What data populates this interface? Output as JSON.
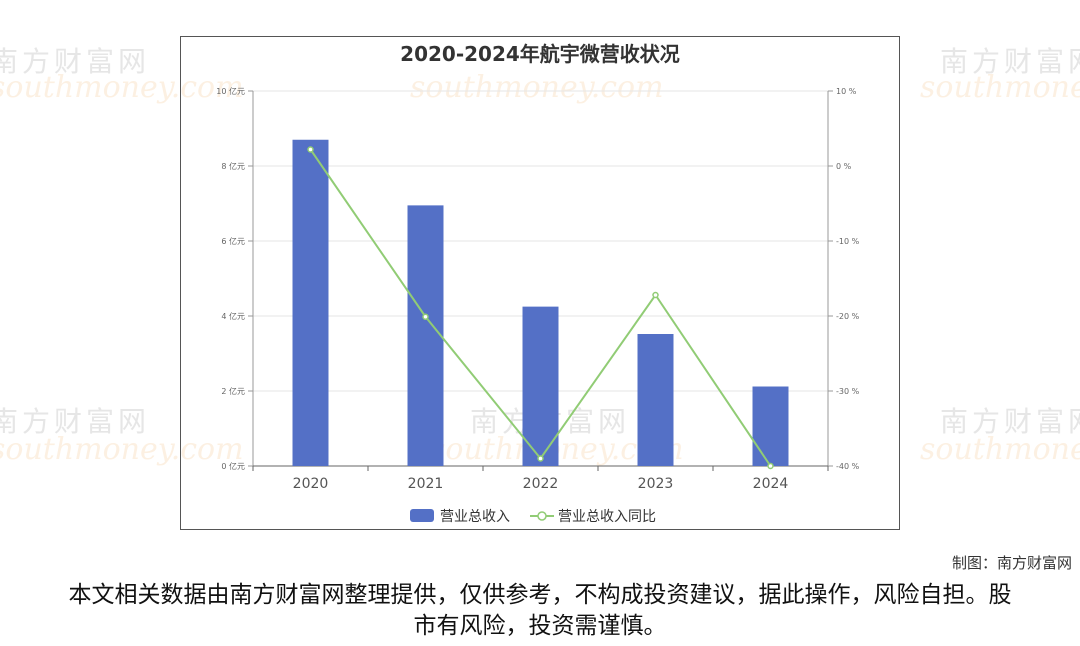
{
  "chart_data": {
    "type": "bar+line",
    "title": "2020-2024年航宇微营收状况",
    "categories": [
      "2020",
      "2021",
      "2022",
      "2023",
      "2024"
    ],
    "series": [
      {
        "name": "营业总收入",
        "type": "bar",
        "axis": "left",
        "unit": "亿元",
        "color": "#5470c6",
        "values": [
          8.7,
          6.95,
          4.25,
          3.52,
          2.12
        ]
      },
      {
        "name": "营业总收入同比",
        "type": "line",
        "axis": "right",
        "unit": "%",
        "color": "#91cc75",
        "values": [
          2.2,
          -20.1,
          -39,
          -17.2,
          -40
        ]
      }
    ],
    "left_axis": {
      "ylim": [
        0,
        10
      ],
      "ticks": [
        0,
        2,
        4,
        6,
        8,
        10
      ],
      "tick_labels": [
        "0 亿元",
        "2 亿元",
        "4 亿元",
        "6 亿元",
        "8 亿元",
        "10 亿元"
      ]
    },
    "right_axis": {
      "ylim": [
        -40,
        10
      ],
      "ticks": [
        -40,
        -30,
        -20,
        -10,
        0,
        10
      ],
      "tick_labels": [
        "-40 %",
        "-30 %",
        "-20 %",
        "-10 %",
        "0 %",
        "10 %"
      ]
    },
    "grid": true,
    "legend_position": "bottom-center"
  },
  "credit": "制图：南方财富网",
  "disclaimer": "本文相关数据由南方财富网整理提供，仅供参考，不构成投资建议，据此操作，风险自担。股市有风险，投资需谨慎。",
  "watermark": {
    "cn": "南方财富网",
    "en": "southmoney.com"
  }
}
